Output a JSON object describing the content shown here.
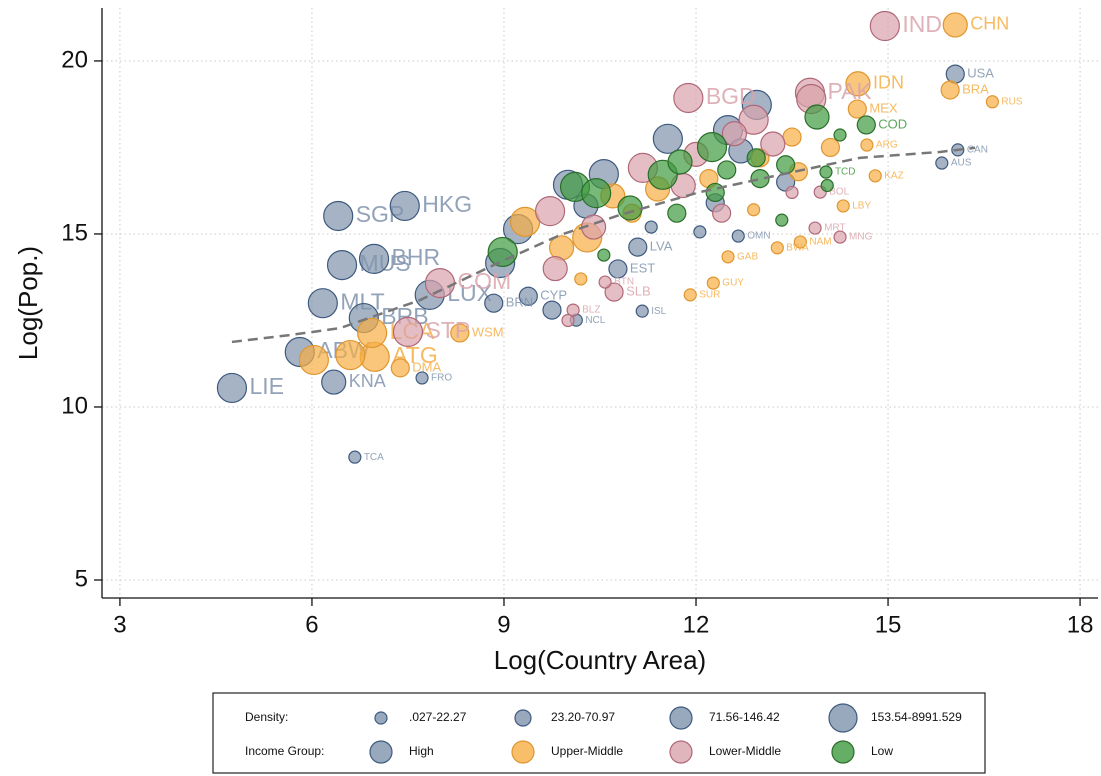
{
  "chart_data": {
    "type": "scatter",
    "xlabel": "Log(Country Area)",
    "ylabel": "Log(Pop.)",
    "xlim": [
      2.72,
      18.28
    ],
    "ylim": [
      4.48,
      21.53
    ],
    "xticks": [
      3,
      6,
      9,
      12,
      15,
      18
    ],
    "yticks": [
      5,
      10,
      15,
      20
    ],
    "grid": true,
    "legend_position": "bottom",
    "density_legend": {
      "title": "Density:",
      "bins": [
        {
          "min": 0.027,
          "max": 22.27,
          "label": ".027-22.27"
        },
        {
          "min": 23.2,
          "max": 70.97,
          "label": "23.20-70.97"
        },
        {
          "min": 71.56,
          "max": 146.42,
          "label": "71.56-146.42"
        },
        {
          "min": 153.54,
          "max": 8991.529,
          "label": "153.54-8991.529"
        }
      ]
    },
    "group_legend_title": "Income Group:",
    "fit": {
      "color": "#777777",
      "x": [
        4.75,
        5.66,
        6.44,
        7.69,
        8.94,
        9.88,
        10.81,
        12.06,
        13.31,
        14.56,
        15.81,
        16.36
      ],
      "y": [
        11.88,
        12.08,
        12.28,
        13.09,
        14.19,
        14.97,
        15.55,
        16.21,
        16.71,
        17.2,
        17.37,
        17.49
      ]
    },
    "series": [
      {
        "name": "High",
        "color": "#7f93ad",
        "edge": "#3e5a7e",
        "x": [
          4.75,
          6.67,
          7.72,
          6.34,
          6.17,
          6.47,
          6.41,
          7.45,
          6.97,
          6.81,
          7.84,
          5.81,
          9.38,
          8.84,
          11.16,
          10.13,
          10.78,
          11.09,
          12.66,
          12.06,
          16.05,
          16.09,
          15.84,
          12.95,
          11.56,
          12.5,
          10.56,
          8.94,
          9.22,
          10.0,
          10.28,
          12.7,
          11.3,
          12.3,
          13.4,
          9.75
        ],
        "y": [
          10.55,
          8.55,
          10.84,
          10.72,
          13.0,
          14.1,
          15.52,
          15.81,
          14.28,
          12.57,
          13.24,
          11.59,
          13.2,
          13.0,
          12.77,
          12.51,
          13.99,
          14.62,
          14.94,
          15.06,
          19.62,
          17.43,
          17.05,
          18.73,
          17.75,
          18.0,
          16.73,
          14.16,
          15.14,
          16.42,
          15.81,
          17.4,
          15.2,
          15.9,
          16.5,
          12.8
        ],
        "density": [
          160,
          10,
          15,
          120,
          1300,
          620,
          7800,
          6800,
          1900,
          660,
          240,
          590,
          60,
          30,
          3,
          15,
          30,
          30,
          15,
          20,
          35,
          4,
          3,
          340,
          520,
          230,
          500,
          400,
          500,
          380,
          130,
          110,
          20,
          60,
          25,
          40
        ],
        "labels": [
          "LIE",
          "TCA",
          "FRO",
          "KNA",
          "MLT",
          "MUS",
          "SGP",
          "HKG",
          "BHR",
          "BRB",
          "LUX",
          "ABW",
          "CYP",
          "BRN",
          "ISL",
          "NCL",
          "EST",
          "LVA",
          "OMN",
          null,
          "USA",
          "CAN",
          "AUS",
          null,
          null,
          null,
          null,
          null,
          null,
          null,
          null,
          null,
          null,
          null,
          null,
          null
        ]
      },
      {
        "name": "Upper-Middle",
        "color": "#f6ae45",
        "edge": "#e0962f",
        "x": [
          16.05,
          16.63,
          15.97,
          14.53,
          14.52,
          14.67,
          14.8,
          14.3,
          13.63,
          13.27,
          12.5,
          12.27,
          11.91,
          8.31,
          6.98,
          6.94,
          7.38,
          6.03,
          6.6,
          9.33,
          9.9,
          10.3,
          10.7,
          11.4,
          12.2,
          13.0,
          13.5,
          14.1,
          10.2,
          11.0,
          12.9,
          13.6
        ],
        "y": [
          21.04,
          18.82,
          19.16,
          19.34,
          18.61,
          17.57,
          16.68,
          15.81,
          14.77,
          14.6,
          14.34,
          13.58,
          13.24,
          12.14,
          11.45,
          12.14,
          11.13,
          11.36,
          11.5,
          15.35,
          14.6,
          14.9,
          16.1,
          16.3,
          16.6,
          17.2,
          17.8,
          17.5,
          13.7,
          15.6,
          15.7,
          16.8
        ],
        "density": [
          150,
          9,
          25,
          145,
          65,
          16,
          7,
          4,
          3,
          4,
          9,
          4,
          4,
          70,
          220,
          300,
          60,
          1400,
          300,
          600,
          120,
          180,
          110,
          90,
          50,
          40,
          60,
          30,
          20,
          40,
          20,
          30
        ],
        "labels": [
          "CHN",
          "RUS",
          "BRA",
          "IDN",
          "MEX",
          "ARG",
          "KAZ",
          "LBY",
          "NAM",
          "BWA",
          "GAB",
          "GUY",
          "SUR",
          "WSM",
          "ATG",
          "LCA",
          "DMA",
          null,
          null,
          null,
          null,
          null,
          null,
          null,
          null,
          null,
          null,
          null,
          null,
          null,
          null,
          null
        ]
      },
      {
        "name": "Lower-Middle",
        "color": "#d9a3ab",
        "edge": "#b06878",
        "x": [
          14.95,
          11.88,
          13.78,
          13.86,
          14.25,
          13.94,
          8.0,
          7.5,
          10.08,
          10.72,
          10.58,
          11.17,
          9.72,
          13.8,
          12.9,
          12.6,
          13.2,
          12.0,
          11.8,
          9.8,
          10.0,
          12.4,
          13.5,
          10.4
        ],
        "y": [
          21.01,
          18.93,
          19.08,
          15.17,
          14.91,
          16.21,
          13.58,
          12.17,
          12.8,
          13.32,
          13.61,
          16.91,
          15.66,
          18.9,
          18.3,
          17.9,
          17.6,
          17.3,
          16.4,
          14.0,
          12.5,
          15.6,
          16.2,
          15.2
        ],
        "density": [
          460,
          1260,
          280,
          4,
          2,
          10,
          460,
          220,
          17,
          25,
          20,
          340,
          310,
          220,
          370,
          150,
          90,
          150,
          80,
          100,
          18,
          40,
          20,
          120
        ],
        "labels": [
          "IND",
          "BGD",
          "PAK",
          "MRT",
          "MNG",
          "BOL",
          "COM",
          "STP",
          "BLZ",
          "SLB",
          "BTN",
          null,
          null,
          null,
          null,
          null,
          null,
          null,
          null,
          null,
          null,
          null,
          null,
          null
        ]
      },
      {
        "name": "Low",
        "color": "#3e9a3e",
        "edge": "#2a6e2a",
        "x": [
          14.66,
          14.03,
          13.89,
          8.98,
          10.11,
          10.44,
          11.48,
          12.25,
          11.75,
          13.34,
          12.94,
          12.48,
          10.97,
          10.56,
          14.25,
          13.4,
          14.05,
          11.7,
          12.3,
          13.0
        ],
        "y": [
          18.15,
          16.79,
          18.38,
          14.48,
          16.36,
          16.18,
          16.71,
          17.51,
          17.08,
          15.4,
          17.2,
          16.85,
          15.75,
          14.39,
          17.86,
          17.0,
          16.4,
          15.6,
          16.2,
          16.6
        ],
        "density": [
          35,
          12,
          110,
          200,
          430,
          300,
          200,
          160,
          130,
          20,
          60,
          50,
          100,
          15,
          22,
          40,
          15,
          40,
          30,
          70
        ],
        "labels": [
          "COD",
          "TCD",
          null,
          null,
          null,
          null,
          null,
          null,
          null,
          null,
          null,
          null,
          null,
          null,
          null,
          null,
          null,
          null,
          null,
          null
        ]
      }
    ]
  }
}
